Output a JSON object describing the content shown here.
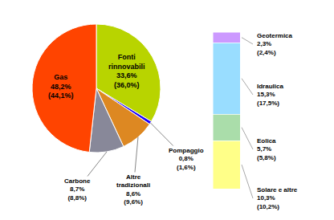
{
  "chart_data": [
    {
      "type": "pie",
      "categories": [
        "Fonti\nrinnovabili",
        "Pompaggio",
        "Altre\ntradizionali",
        "Carbone",
        "Gas"
      ],
      "values": [
        33.6,
        0.8,
        8.6,
        8.7,
        48.2
      ],
      "value_labels": [
        "33,6%",
        "0,8%",
        "8,6%",
        "8,7%",
        "48,2%"
      ],
      "annotations": [
        "(36,0%)",
        "(1,6%)",
        "(9,6%)",
        "(8,8%)",
        "(44,1%)"
      ],
      "colors": [
        "#b8d400",
        "#1a00ff",
        "#dd8822",
        "#888899",
        "#ff4400"
      ]
    },
    {
      "type": "bar",
      "stacked": true,
      "categories": [
        null
      ],
      "series": [
        {
          "name": "Solare e altre",
          "color": "#ffff88",
          "values": [
            10.3
          ],
          "value_labels": [
            "10,3%"
          ],
          "annotations": [
            "(10,2%)"
          ]
        },
        {
          "name": "Eolica",
          "color": "#aaddaa",
          "values": [
            5.7
          ],
          "value_labels": [
            "5,7%"
          ],
          "annotations": [
            "(5,8%)"
          ]
        },
        {
          "name": "Idraulica",
          "color": "#99ddff",
          "values": [
            15.3
          ],
          "value_labels": [
            "15,3%"
          ],
          "annotations": [
            "(17,5%)"
          ]
        },
        {
          "name": "Geotermica",
          "color": "#cc99ff",
          "values": [
            2.3
          ],
          "value_labels": [
            "2,3%"
          ],
          "annotations": [
            "(2,4%)"
          ]
        }
      ],
      "ylim": [
        0,
        33.6
      ],
      "tick_labels": false,
      "grid": false
    }
  ]
}
